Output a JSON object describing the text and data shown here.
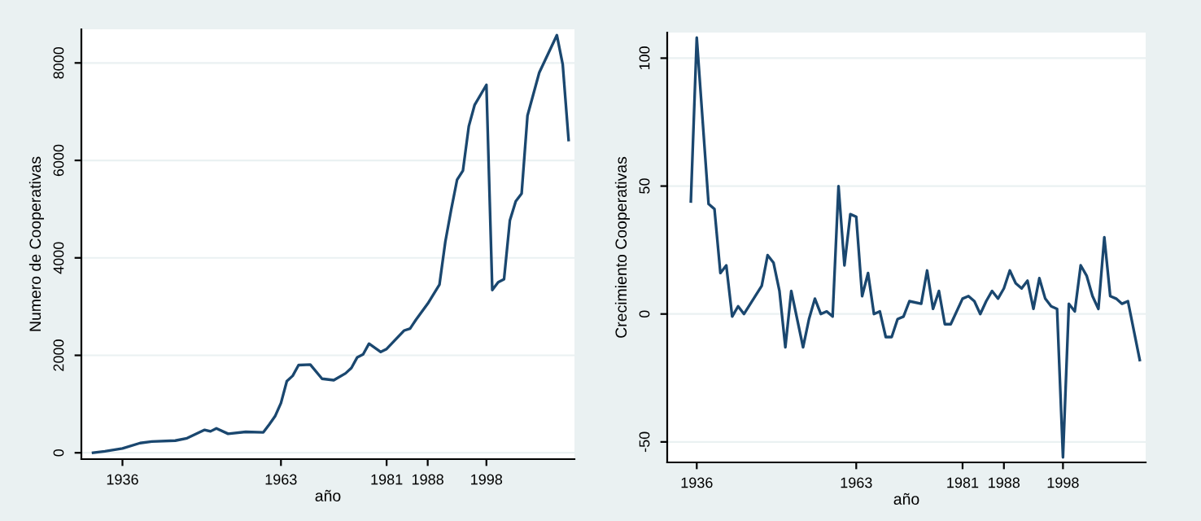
{
  "chart_data": [
    {
      "type": "line",
      "xlabel": "año",
      "ylabel": "Numero de Cooperativas",
      "grid": "y",
      "xlim": [
        1929,
        2013
      ],
      "ylim": [
        -130,
        8690
      ],
      "xticks": [
        1936,
        1963,
        1981,
        1988,
        1998
      ],
      "yticks": [
        0,
        2000,
        4000,
        6000,
        8000
      ],
      "series": [
        {
          "color": "#1a476f",
          "x": [
            1931,
            1933,
            1936,
            1939,
            1941,
            1945,
            1947,
            1950,
            1951,
            1952,
            1954,
            1957,
            1960,
            1961,
            1962,
            1963,
            1964,
            1965,
            1966,
            1968,
            1970,
            1972,
            1974,
            1975,
            1976,
            1977,
            1978,
            1980,
            1981,
            1984,
            1985,
            1986,
            1988,
            1990,
            1991,
            1992,
            1993,
            1994,
            1995,
            1996,
            1998,
            1999,
            2000,
            2001,
            2002,
            2003,
            2004,
            2005,
            2007,
            2010,
            2011,
            2012
          ],
          "values": [
            0,
            30,
            90,
            200,
            230,
            250,
            300,
            470,
            440,
            500,
            390,
            430,
            420,
            580,
            750,
            1020,
            1470,
            1580,
            1800,
            1810,
            1520,
            1490,
            1630,
            1740,
            1960,
            2020,
            2240,
            2070,
            2130,
            2510,
            2550,
            2730,
            3060,
            3450,
            4330,
            4990,
            5600,
            5790,
            6700,
            7140,
            7550,
            3340,
            3500,
            3560,
            4770,
            5160,
            5320,
            6920,
            7800,
            8570,
            7970,
            6420
          ]
        }
      ]
    },
    {
      "type": "line",
      "xlabel": "año",
      "ylabel": "Crecimiento Cooperativas",
      "grid": "y",
      "xlim": [
        1931,
        2012
      ],
      "ylim": [
        -58,
        110
      ],
      "xticks": [
        1936,
        1963,
        1981,
        1988,
        1998
      ],
      "yticks": [
        {
          "value": -50,
          "label": "-50"
        },
        0,
        50,
        100
      ],
      "series": [
        {
          "color": "#1a476f",
          "x": [
            1935,
            1936,
            1938,
            1939,
            1940,
            1941,
            1942,
            1943,
            1944,
            1947,
            1948,
            1949,
            1950,
            1951,
            1952,
            1954,
            1955,
            1956,
            1957,
            1958,
            1959,
            1960,
            1961,
            1962,
            1963,
            1964,
            1965,
            1966,
            1967,
            1968,
            1969,
            1970,
            1971,
            1972,
            1974,
            1975,
            1976,
            1977,
            1978,
            1979,
            1981,
            1982,
            1983,
            1984,
            1985,
            1986,
            1987,
            1988,
            1989,
            1990,
            1991,
            1992,
            1993,
            1994,
            1995,
            1996,
            1997,
            1998,
            1999,
            2000,
            2001,
            2002,
            2003,
            2004,
            2005,
            2006,
            2007,
            2008,
            2009,
            2011
          ],
          "values": [
            44,
            108,
            43,
            41,
            16,
            19,
            -1,
            3,
            0,
            11,
            23,
            20,
            9,
            -13,
            9,
            -13,
            -2,
            6,
            0,
            1,
            -1,
            50,
            19,
            39,
            38,
            7,
            16,
            0,
            1,
            -9,
            -9,
            -2,
            -1,
            5,
            4,
            17,
            2,
            9,
            -4,
            -4,
            6,
            7,
            5,
            0,
            5,
            9,
            6,
            10,
            17,
            12,
            10,
            13,
            2,
            14,
            6,
            3,
            2,
            -56,
            4,
            1,
            19,
            15,
            7,
            2,
            30,
            7,
            6,
            4,
            5,
            -18
          ]
        }
      ]
    }
  ]
}
